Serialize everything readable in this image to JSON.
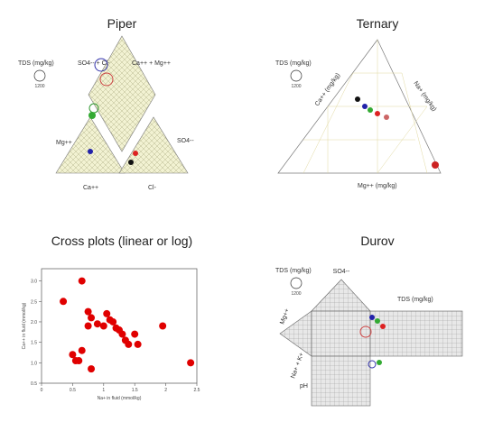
{
  "panels": [
    {
      "title": "Piper",
      "labels": [
        "TDS (mg/kg)",
        "1200",
        "Mg++",
        "Ca++",
        "Cl-",
        "SO4--",
        "Ca++ + Mg++",
        "SO4-- + Cl-"
      ]
    },
    {
      "title": "Ternary",
      "labels": [
        "TDS (mg/kg)",
        "1200",
        "Ca++ (mg/kg)",
        "Na+ (mg/kg)",
        "Mg++ (mg/kg)"
      ]
    },
    {
      "title": "Cross plots (linear or log)",
      "chart": {
        "type": "scatter",
        "color": "#e00000",
        "xlabel": "Na+ in fluid (mmol/kg)",
        "ylabel": "Ca++ in fluid (mmol/kg)",
        "x": [
          0.35,
          0.65,
          0.75,
          0.8,
          0.75,
          0.9,
          1.0,
          1.05,
          1.1,
          1.15,
          1.2,
          1.25,
          1.3,
          1.35,
          1.4,
          1.5,
          1.55,
          1.95,
          0.5,
          0.55,
          0.6,
          0.65,
          0.8,
          2.4
        ],
        "y": [
          2.5,
          3.0,
          2.25,
          2.1,
          1.9,
          1.95,
          1.9,
          2.2,
          2.05,
          2.0,
          1.85,
          1.8,
          1.7,
          1.55,
          1.45,
          1.7,
          1.45,
          1.9,
          1.2,
          1.05,
          1.05,
          1.3,
          0.85,
          1.0
        ],
        "xlim": [
          0,
          2.5
        ],
        "ylim": [
          0.5,
          3.3
        ],
        "xticks": [
          0,
          0.5,
          1,
          1.5,
          2,
          2.5
        ],
        "yticks": [
          {
            "value": 0.5,
            "label": "0.5"
          },
          {
            "value": 1,
            "label": "1.0"
          },
          {
            "value": 1.5,
            "label": "1.5"
          },
          {
            "value": 2,
            "label": "2.0"
          },
          {
            "value": 2.5,
            "label": "2.5"
          },
          {
            "value": 3,
            "label": "3.0"
          }
        ]
      }
    },
    {
      "title": "Durov",
      "labels": [
        "TDS (mg/kg)",
        "1200",
        "SO4--",
        "Mg++",
        "Na+ + K+",
        "pH",
        "TDS (mg/kg)"
      ]
    }
  ]
}
